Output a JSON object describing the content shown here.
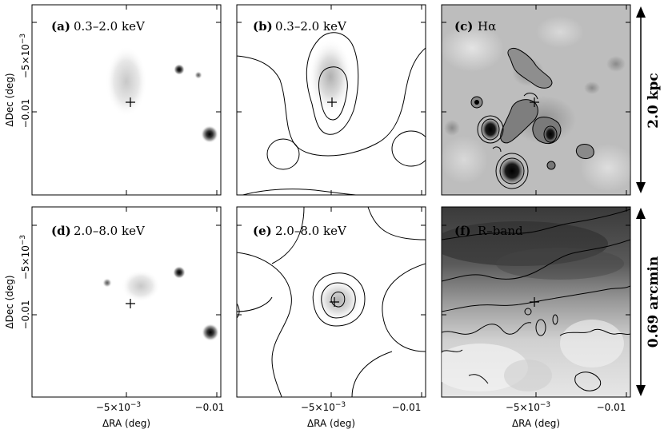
{
  "figure": {
    "panels": [
      {
        "id": "a",
        "tag": "(a)",
        "label": "0.3–2.0 keV",
        "kind": "xray-soft"
      },
      {
        "id": "b",
        "tag": "(b)",
        "label": "0.3–2.0 keV",
        "kind": "xray-soft-smoothed"
      },
      {
        "id": "c",
        "tag": "(c)",
        "label": "Hα",
        "kind": "halpha"
      },
      {
        "id": "d",
        "tag": "(d)",
        "label": "2.0–8.0 keV",
        "kind": "xray-hard"
      },
      {
        "id": "e",
        "tag": "(e)",
        "label": "2.0–8.0 keV",
        "kind": "xray-hard-smoothed"
      },
      {
        "id": "f",
        "tag": "(f)",
        "label": "R–band",
        "kind": "rband"
      }
    ],
    "axes": {
      "xlabel": "ΔRA (deg)",
      "ylabel": "ΔDec (deg)",
      "x_ticks": [
        "−5×10",
        "−0.01"
      ],
      "x_tick_exp": "−3",
      "y_ticks": [
        "−5×10",
        "−0.01"
      ],
      "y_tick_exp": "−3"
    },
    "scale_bars": {
      "top": "2.0 kpc",
      "bottom": "0.69 arcmin"
    }
  }
}
